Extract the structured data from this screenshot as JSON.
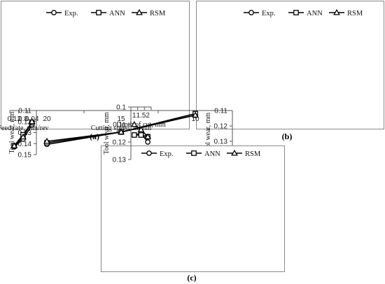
{
  "chart_data": [
    {
      "type": "line",
      "panel_label": "(a)",
      "categories": [
        "0.04",
        "0.8",
        "0.12"
      ],
      "xlabel": "Feed rate, mm/rev",
      "ylabel": "Tool wear, mm",
      "ylim": [
        0.11,
        0.15
      ],
      "yticks": [
        "0.11",
        "0.12",
        "0.13",
        "0.14",
        "0.15"
      ],
      "legend_position": "top",
      "grid": false,
      "series": [
        {
          "name": "Exp.",
          "marker": "circle",
          "values": [
            0.123,
            0.136,
            0.143
          ]
        },
        {
          "name": "ANN",
          "marker": "square",
          "values": [
            0.121,
            0.132,
            0.142
          ]
        },
        {
          "name": "RSM",
          "marker": "triangle",
          "values": [
            0.12,
            0.134,
            0.142
          ]
        }
      ]
    },
    {
      "type": "line",
      "panel_label": "(b)",
      "categories": [
        "10",
        "15",
        "20"
      ],
      "xlabel": "Cutting speed, m/min",
      "ylabel": "Tool wear, mm",
      "ylim": [
        0.11,
        0.14
      ],
      "yticks": [
        "0.11",
        "0.12",
        "0.13",
        "0.14"
      ],
      "legend_position": "top",
      "grid": false,
      "series": [
        {
          "name": "Exp.",
          "marker": "circle",
          "values": [
            0.113,
            0.124,
            0.132
          ]
        },
        {
          "name": "ANN",
          "marker": "square",
          "values": [
            0.112,
            0.124,
            0.131
          ]
        },
        {
          "name": "RSM",
          "marker": "triangle",
          "values": [
            0.113,
            0.124,
            0.13
          ]
        }
      ]
    },
    {
      "type": "line",
      "panel_label": "(c)",
      "categories": [
        "1",
        "1.5",
        "2"
      ],
      "xlabel": "Depth of cut, mm",
      "ylabel": "Tool wear, mm",
      "ylim": [
        0.1,
        0.13
      ],
      "yticks": [
        "0.1",
        "0.11",
        "0.12",
        "0.13"
      ],
      "legend_position": "top",
      "grid": false,
      "series": [
        {
          "name": "Exp.",
          "marker": "circle",
          "values": [
            0.116,
            0.115,
            0.12
          ]
        },
        {
          "name": "ANN",
          "marker": "square",
          "values": [
            0.116,
            0.116,
            0.117
          ]
        },
        {
          "name": "RSM",
          "marker": "triangle",
          "values": [
            0.11,
            0.113,
            0.117
          ]
        }
      ]
    }
  ]
}
